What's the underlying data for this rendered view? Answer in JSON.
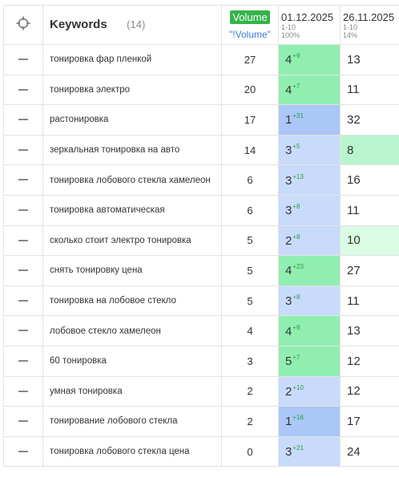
{
  "header": {
    "keywords_title": "Keywords",
    "keywords_count": "(14)",
    "volume_badge": "Volume",
    "volume_sub": "\"!Volume\"",
    "date1": {
      "date": "01.12.2025",
      "range": "1-10",
      "pct": "100%"
    },
    "date2": {
      "date": "26.11.2025",
      "range": "1-10",
      "pct": "14%"
    }
  },
  "rows": [
    {
      "keyword": "тонировка фар пленкой",
      "volume": "27",
      "pos1": "4",
      "delta1": "+9",
      "pos2": "13",
      "bg1": "green",
      "bg2": "none"
    },
    {
      "keyword": "тонировка электро",
      "volume": "20",
      "pos1": "4",
      "delta1": "+7",
      "pos2": "11",
      "bg1": "green",
      "bg2": "none"
    },
    {
      "keyword": "растонировка",
      "volume": "17",
      "pos1": "1",
      "delta1": "+31",
      "pos2": "32",
      "bg1": "blue2",
      "bg2": "none"
    },
    {
      "keyword": "зеркальная тонировка на авто",
      "volume": "14",
      "pos1": "3",
      "delta1": "+5",
      "pos2": "8",
      "bg1": "blue",
      "bg2": "lgreen"
    },
    {
      "keyword": "тонировка лобового стекла хамелеон",
      "volume": "6",
      "pos1": "3",
      "delta1": "+13",
      "pos2": "16",
      "bg1": "blue",
      "bg2": "none"
    },
    {
      "keyword": "тонировка автоматическая",
      "volume": "6",
      "pos1": "3",
      "delta1": "+8",
      "pos2": "11",
      "bg1": "blue",
      "bg2": "none"
    },
    {
      "keyword": "сколько стоит электро тонировка",
      "volume": "5",
      "pos1": "2",
      "delta1": "+8",
      "pos2": "10",
      "bg1": "blue",
      "bg2": "lgreen2"
    },
    {
      "keyword": "снять тонировку цена",
      "volume": "5",
      "pos1": "4",
      "delta1": "+23",
      "pos2": "27",
      "bg1": "green",
      "bg2": "none"
    },
    {
      "keyword": "тонировка на лобовое стекло",
      "volume": "5",
      "pos1": "3",
      "delta1": "+8",
      "pos2": "11",
      "bg1": "blue",
      "bg2": "none"
    },
    {
      "keyword": "лобовое стекло хамелеон",
      "volume": "4",
      "pos1": "4",
      "delta1": "+9",
      "pos2": "13",
      "bg1": "green",
      "bg2": "none"
    },
    {
      "keyword": "60 тонировка",
      "volume": "3",
      "pos1": "5",
      "delta1": "+7",
      "pos2": "12",
      "bg1": "green",
      "bg2": "none"
    },
    {
      "keyword": "умная тонировка",
      "volume": "2",
      "pos1": "2",
      "delta1": "+10",
      "pos2": "12",
      "bg1": "blue",
      "bg2": "none"
    },
    {
      "keyword": "тонирование лобового стекла",
      "volume": "2",
      "pos1": "1",
      "delta1": "+16",
      "pos2": "17",
      "bg1": "blue2",
      "bg2": "none"
    },
    {
      "keyword": "тонировка лобового стекла цена",
      "volume": "0",
      "pos1": "3",
      "delta1": "+21",
      "pos2": "24",
      "bg1": "blue",
      "bg2": "none"
    }
  ],
  "colors": {
    "green": "#90efb0",
    "blue": "#c8dbfb",
    "blue2": "#aac7f7",
    "lgreen": "#b8f5cc",
    "lgreen2": "#dafbe4",
    "delta": "#2a9d3f",
    "badge": "#35b34a"
  },
  "icons": {
    "header": "target-crosshair-icon",
    "row": "minus-icon"
  }
}
